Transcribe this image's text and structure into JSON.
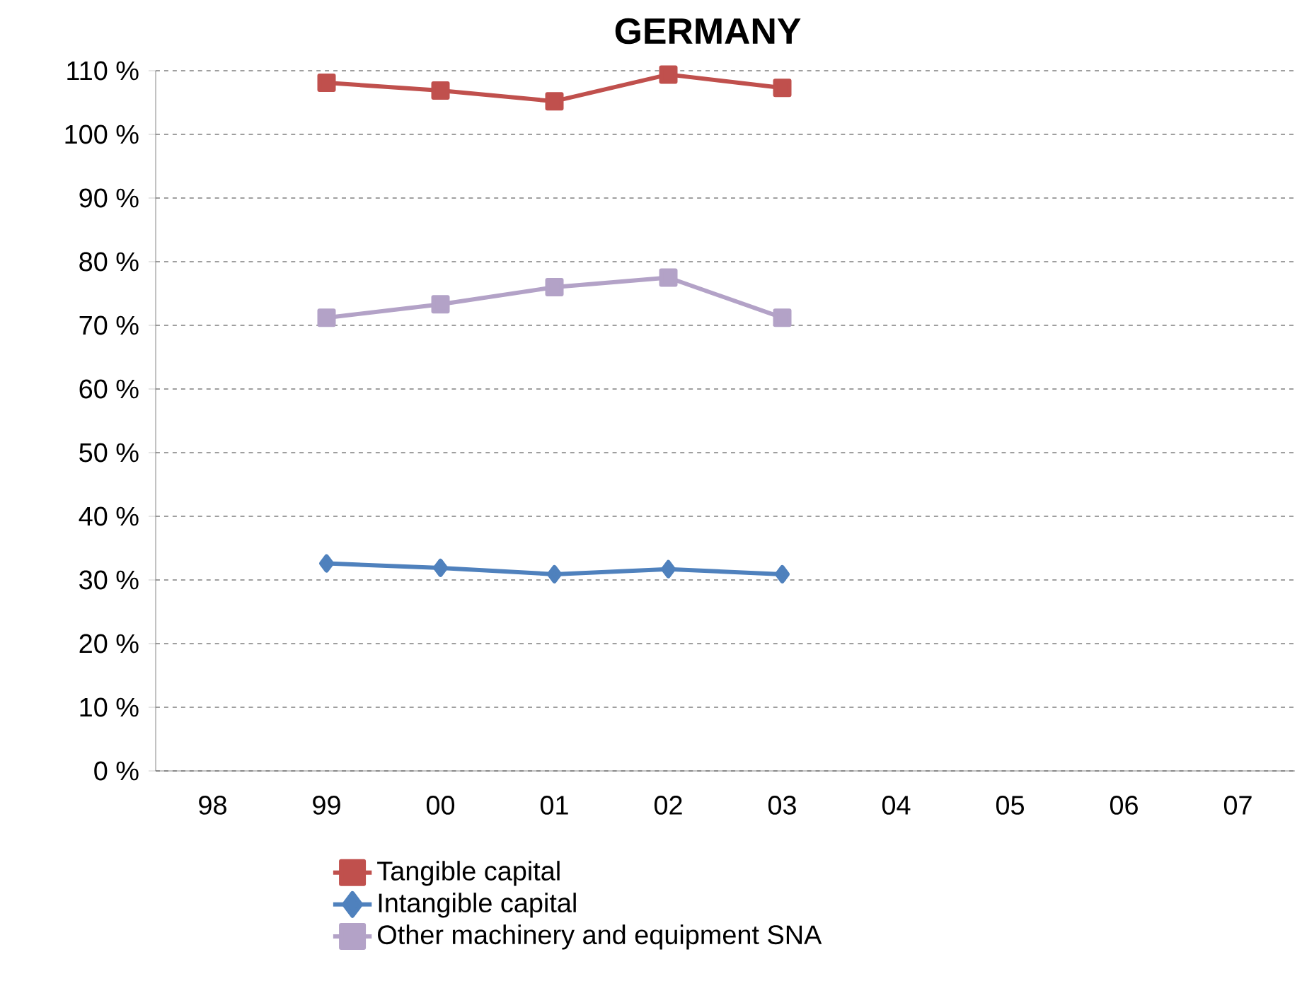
{
  "chart_data": {
    "type": "line",
    "title": "GERMANY",
    "categories": [
      "98",
      "99",
      "00",
      "01",
      "02",
      "03",
      "04",
      "05",
      "06",
      "07"
    ],
    "series": [
      {
        "name": "Tangible capital",
        "color": "#c0504d",
        "marker": "square",
        "values": [
          null,
          108.1,
          106.9,
          105.2,
          109.4,
          107.3,
          null,
          null,
          null,
          null
        ]
      },
      {
        "name": "Intangible capital",
        "color": "#4f81bd",
        "marker": "diamond",
        "values": [
          null,
          32.6,
          31.9,
          30.9,
          31.7,
          30.9,
          null,
          null,
          null,
          null
        ]
      },
      {
        "name": "Other machinery and equipment SNA",
        "color": "#b3a2c7",
        "marker": "square",
        "values": [
          null,
          71.2,
          73.3,
          76.0,
          77.5,
          71.2,
          null,
          null,
          null,
          null
        ]
      }
    ],
    "ylim": [
      0,
      110
    ],
    "yticks": [
      {
        "value": 0,
        "label": "0 %"
      },
      {
        "value": 10,
        "label": "10 %"
      },
      {
        "value": 20,
        "label": "20 %"
      },
      {
        "value": 30,
        "label": "30 %"
      },
      {
        "value": 40,
        "label": "40 %"
      },
      {
        "value": 50,
        "label": "50 %"
      },
      {
        "value": 60,
        "label": "60 %"
      },
      {
        "value": 70,
        "label": "70 %"
      },
      {
        "value": 80,
        "label": "80 %"
      },
      {
        "value": 90,
        "label": "90 %"
      },
      {
        "value": 100,
        "label": "100 %"
      },
      {
        "value": 110,
        "label": "110 %"
      }
    ],
    "grid": "y",
    "legend": "bottom",
    "line_style": "solid"
  }
}
